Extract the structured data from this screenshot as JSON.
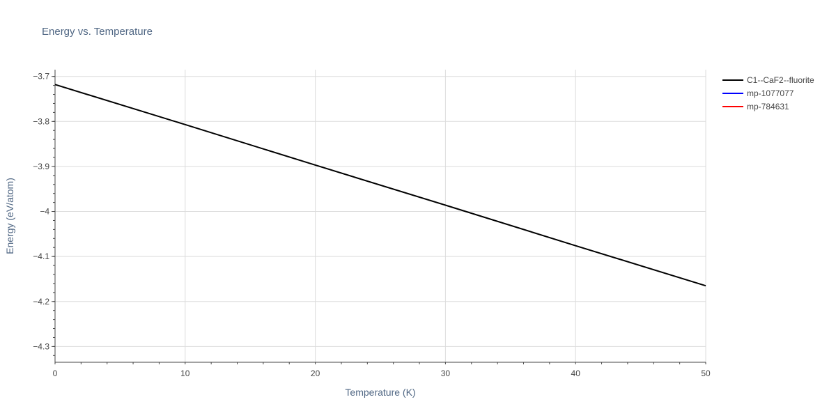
{
  "chart_data": {
    "type": "line",
    "title": "Energy vs. Temperature",
    "xlabel": "Temperature (K)",
    "ylabel": "Energy (eV/atom)",
    "xlim": [
      0,
      50
    ],
    "ylim": [
      -4.335,
      -3.685
    ],
    "x_ticks": [
      0,
      10,
      20,
      30,
      40,
      50
    ],
    "x_tick_labels": [
      "0",
      "10",
      "20",
      "30",
      "40",
      "50"
    ],
    "y_ticks": [
      -3.7,
      -3.8,
      -3.9,
      -4.0,
      -4.1,
      -4.2,
      -4.3
    ],
    "y_tick_labels": [
      "−3.7",
      "−3.8",
      "−3.9",
      "−4",
      "−4.1",
      "−4.2",
      "−4.3"
    ],
    "grid": true,
    "legend_position": "top-right outside",
    "series": [
      {
        "name": "C1--CaF2--fluorite",
        "color": "#000000",
        "x": [
          0,
          10,
          20,
          30,
          40,
          50
        ],
        "y": [
          -3.718,
          -3.807,
          -3.897,
          -3.986,
          -4.076,
          -4.165
        ]
      },
      {
        "name": "mp-1077077",
        "color": "#0000ff",
        "x": [],
        "y": []
      },
      {
        "name": "mp-784631",
        "color": "#ff0000",
        "x": [],
        "y": []
      }
    ]
  }
}
